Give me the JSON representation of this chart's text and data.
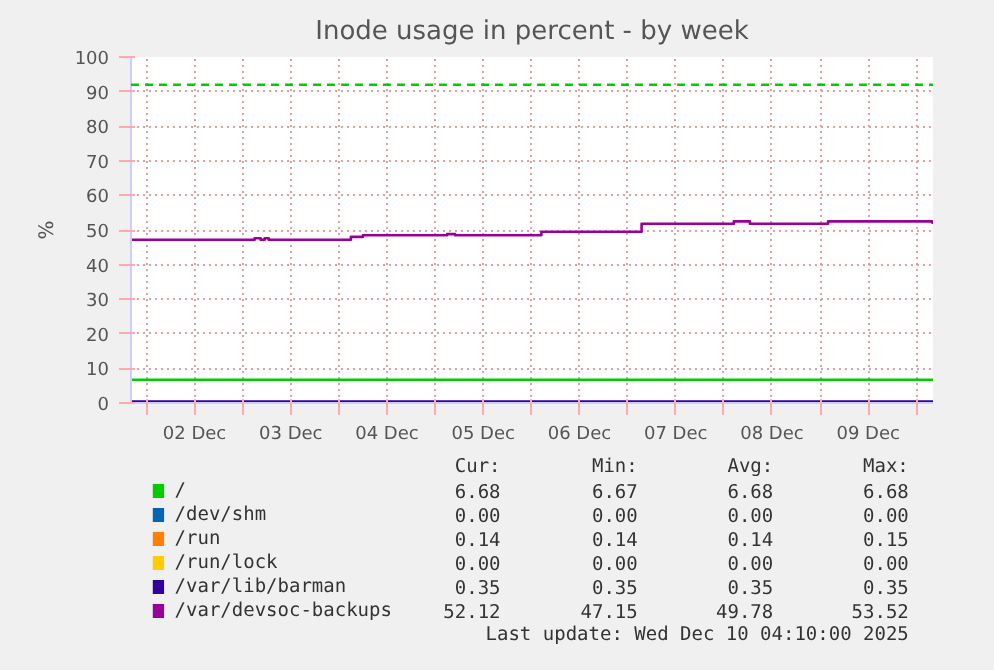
{
  "chart_data": {
    "type": "step",
    "title": "Inode usage in percent - by week",
    "ylabel": "%",
    "x": [
      "2025-12-01T20:10",
      "2025-12-10T04:10"
    ],
    "xlim": [
      "2025-12-01T20:10",
      "2025-12-10T04:10"
    ],
    "xticks": [
      {
        "value": "2025-12-02T00:00",
        "label": null
      },
      {
        "value": "2025-12-02T12:00",
        "label": "02 Dec"
      },
      {
        "value": "2025-12-03T00:00",
        "label": null
      },
      {
        "value": "2025-12-03T12:00",
        "label": "03 Dec"
      },
      {
        "value": "2025-12-04T00:00",
        "label": null
      },
      {
        "value": "2025-12-04T12:00",
        "label": "04 Dec"
      },
      {
        "value": "2025-12-05T00:00",
        "label": null
      },
      {
        "value": "2025-12-05T12:00",
        "label": "05 Dec"
      },
      {
        "value": "2025-12-06T00:00",
        "label": null
      },
      {
        "value": "2025-12-06T12:00",
        "label": "06 Dec"
      },
      {
        "value": "2025-12-07T00:00",
        "label": null
      },
      {
        "value": "2025-12-07T12:00",
        "label": "07 Dec"
      },
      {
        "value": "2025-12-08T00:00",
        "label": null
      },
      {
        "value": "2025-12-08T12:00",
        "label": "08 Dec"
      },
      {
        "value": "2025-12-09T00:00",
        "label": null
      },
      {
        "value": "2025-12-09T12:00",
        "label": "09 Dec"
      },
      {
        "value": "2025-12-10T00:00",
        "label": null
      }
    ],
    "ylim": [
      0,
      100
    ],
    "yticks": [
      0,
      10,
      20,
      30,
      40,
      50,
      60,
      70,
      80,
      90,
      100
    ],
    "grid": true,
    "legend": "bottom",
    "series": [
      {
        "name": "/",
        "color": "#00cc00",
        "values": [
          6.7,
          6.7
        ]
      },
      {
        "name": "/dev/shm",
        "color": "#0066b3",
        "values": [
          null,
          null
        ]
      },
      {
        "name": "/run",
        "color": "#ff8000",
        "values": [
          null,
          null
        ]
      },
      {
        "name": "/run/lock",
        "color": "#ffcc00",
        "values": [
          null,
          null
        ]
      },
      {
        "name": "/var/lib/barman",
        "color": "#330099",
        "values": [
          0.4,
          0.4
        ]
      },
      {
        "name": "/var/devsoc-backups",
        "color": "#990099",
        "x": [
          "2025-12-01T20:10",
          "2025-12-03T03:00",
          "2025-12-03T04:30",
          "2025-12-03T05:30",
          "2025-12-03T06:30",
          "2025-12-04T03:00",
          "2025-12-04T06:00",
          "2025-12-05T03:00",
          "2025-12-05T05:00",
          "2025-12-06T02:30",
          "2025-12-07T03:30",
          "2025-12-08T02:30",
          "2025-12-08T06:30",
          "2025-12-09T02:00",
          "2025-12-10T04:00",
          "2025-12-10T04:10"
        ],
        "values": [
          47.2,
          47.6,
          47.2,
          47.6,
          47.2,
          48.0,
          48.5,
          48.8,
          48.5,
          49.5,
          51.8,
          52.5,
          51.8,
          52.5,
          52.1,
          52.1
        ]
      }
    ],
    "ref_lines": [
      {
        "axis": "y",
        "value": 92,
        "color": "#00cc00",
        "line_style": "dashed"
      }
    ],
    "annotations": [
      "Cur:",
      "Min:",
      "Avg:",
      "Max:",
      "6.68",
      "6.67",
      "6.68",
      "6.68",
      "0.00",
      "0.00",
      "0.00",
      "0.00",
      "0.14",
      "0.14",
      "0.14",
      "0.15",
      "0.00",
      "0.00",
      "0.00",
      "0.00",
      "0.35",
      "0.35",
      "0.35",
      "0.35",
      "52.12",
      "47.15",
      "49.78",
      "53.52",
      "Last update: Wed Dec 10 04:10:00 2025"
    ]
  }
}
